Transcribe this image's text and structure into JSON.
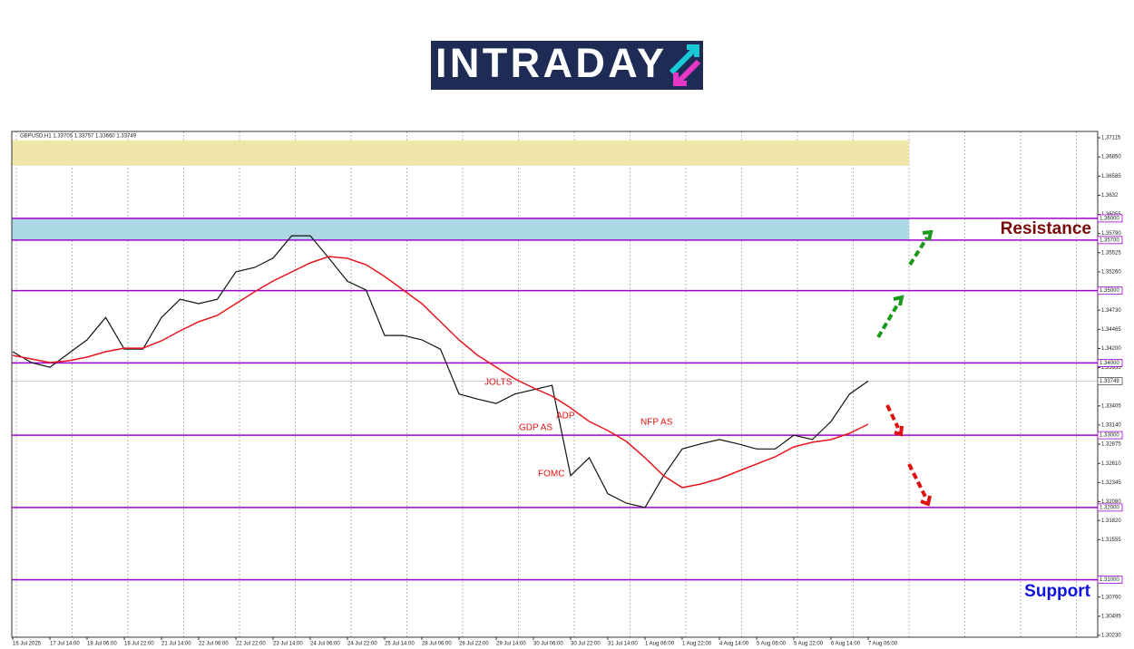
{
  "logo": "INTRADAY",
  "chart_data": {
    "type": "line",
    "title": "GBPUSD,H1  1.33705 1.33757 1.33660 1.33749",
    "categories": [
      "16 Jul 2025",
      null,
      "17 Jul 14:00",
      null,
      "18 Jul 06:00",
      null,
      "18 Jul 22:00",
      null,
      "21 Jul 14:00",
      null,
      "22 Jul 06:00",
      null,
      "22 Jul 22:00",
      null,
      "23 Jul 14:00",
      null,
      "24 Jul 06:00",
      null,
      "24 Jul 22:00",
      null,
      "25 Jul 14:00",
      null,
      "28 Jul 06:00",
      null,
      "28 Jul 22:00",
      null,
      "29 Jul 14:00",
      null,
      "30 Jul 06:00",
      null,
      "30 Jul 22:00",
      null,
      "31 Jul 14:00",
      null,
      "1 Aug 06:00",
      null,
      "1 Aug 22:00",
      null,
      "4 Aug 14:00",
      null,
      "5 Aug 06:00",
      null,
      "5 Aug 22:00",
      null,
      "6 Aug 14:00",
      null,
      "7 Aug 06:00"
    ],
    "series": [
      {
        "color": "#111111",
        "values": [
          1.34155,
          1.34005,
          1.3394,
          1.3413,
          1.3432,
          1.3463,
          1.3419,
          1.3419,
          1.3463,
          1.3488,
          1.3482,
          1.3488,
          1.3526,
          1.3532,
          1.3545,
          1.3576,
          1.3576,
          1.3545,
          1.3513,
          1.3501,
          1.3438,
          1.3438,
          1.3432,
          1.3419,
          1.3357,
          1.335,
          1.3344,
          1.3357,
          1.3363,
          1.3369,
          1.3244,
          1.3269,
          1.3219,
          1.3206,
          1.32,
          1.3244,
          1.3281,
          1.3288,
          1.3294,
          1.3288,
          1.3281,
          1.3281,
          1.33,
          1.3294,
          1.3319,
          1.3357,
          1.33749
        ]
      },
      {
        "color": "#e8141c",
        "values": [
          1.34105,
          1.34055,
          1.34005,
          1.3403,
          1.3408,
          1.34155,
          1.34205,
          1.34205,
          1.34306,
          1.34444,
          1.34569,
          1.34657,
          1.3482,
          1.34983,
          1.35134,
          1.35259,
          1.35384,
          1.35472,
          1.35447,
          1.35359,
          1.35196,
          1.35008,
          1.3482,
          1.34569,
          1.34319,
          1.34105,
          1.33942,
          1.33779,
          1.33654,
          1.33541,
          1.33378,
          1.3319,
          1.33065,
          1.32914,
          1.32688,
          1.32438,
          1.32275,
          1.32325,
          1.324,
          1.325,
          1.32601,
          1.32701,
          1.32839,
          1.32902,
          1.32939,
          1.33027,
          1.33152
        ]
      }
    ],
    "ylim": [
      1.30205,
      1.37203
    ],
    "yticks": [
      1.37115,
      {
        "value": 1.3685,
        "label": "1.36850"
      },
      1.36585,
      1.3632,
      1.36055,
      {
        "value": 1.3579,
        "label": "1.35790"
      },
      1.35525,
      {
        "value": 1.3526,
        "label": "1.35260"
      },
      {
        "value": 1.3473,
        "label": "1.34730"
      },
      1.34465,
      {
        "value": 1.342,
        "label": "1.34200"
      },
      1.33935,
      1.33405,
      {
        "value": 1.3314,
        "label": "1.33140"
      },
      1.32875,
      {
        "value": 1.3261,
        "label": "1.32610"
      },
      1.32345,
      {
        "value": 1.3208,
        "label": "1.32080"
      },
      {
        "value": 1.3182,
        "label": "1.31820"
      },
      1.31555,
      {
        "value": 1.3076,
        "label": "1.30760"
      },
      1.30495,
      {
        "value": 1.3023,
        "label": "1.30230"
      }
    ],
    "levels": [
      {
        "value": 1.36,
        "label": "1.36000"
      },
      {
        "value": 1.357,
        "label": "1.35700"
      },
      {
        "value": 1.35,
        "label": "1.35000"
      },
      {
        "value": 1.34,
        "label": "1.34000"
      },
      {
        "value": 1.33,
        "label": "1.33000"
      },
      {
        "value": 1.32,
        "label": "1.32000"
      },
      {
        "value": 1.31,
        "label": "1.31000"
      }
    ],
    "level_color": "#a000d0",
    "zones": [
      {
        "from": 1.3673,
        "to": 1.3708,
        "color": "#f0e6aa"
      },
      {
        "from": 1.357,
        "to": 1.36,
        "color": "#acd8e6"
      }
    ],
    "last_price": 1.33749,
    "annotations": [
      "JOLTS",
      "ADP",
      "GDP AS",
      "FOMC",
      "NFP AS"
    ],
    "resistance_label": "Resistance",
    "support_label": "Support"
  }
}
